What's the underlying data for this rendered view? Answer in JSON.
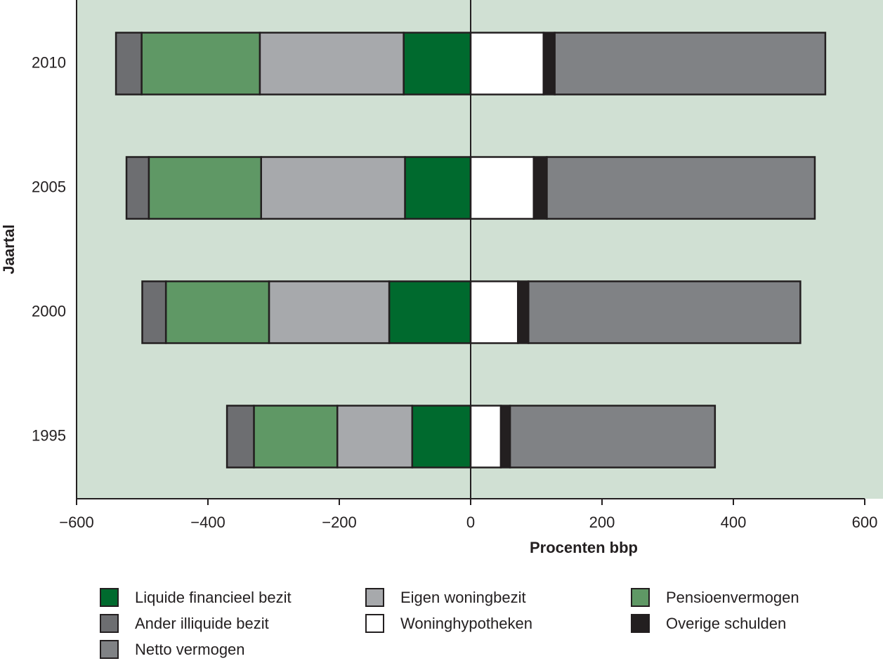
{
  "chart_data": {
    "type": "bar",
    "orientation": "horizontal",
    "stacked": true,
    "categories": [
      "1995",
      "2000",
      "2005",
      "2010"
    ],
    "series": [
      {
        "name": "Liquide financieel bezit",
        "color": "#006a2e",
        "values": [
          -89,
          -124,
          -100,
          -102
        ]
      },
      {
        "name": "Eigen woningbezit",
        "color": "#a7a9ac",
        "values": [
          -114,
          -183,
          -219,
          -219
        ]
      },
      {
        "name": "Pensioenvermogen",
        "color": "#5f9865",
        "values": [
          -127,
          -157,
          -171,
          -180
        ]
      },
      {
        "name": "Ander illiquide bezit",
        "color": "#6d6e71",
        "values": [
          -41,
          -36,
          -34,
          -39
        ]
      },
      {
        "name": "Woninghypotheken",
        "color": "#ffffff",
        "values": [
          46,
          72,
          96,
          111
        ]
      },
      {
        "name": "Overige schulden",
        "color": "#231f20",
        "values": [
          14,
          16,
          20,
          17
        ]
      },
      {
        "name": "Netto vermogen",
        "color": "#808285",
        "values": [
          312,
          414,
          408,
          412
        ]
      }
    ],
    "xlim": [
      -600,
      600
    ],
    "xticks": [
      {
        "value": -600,
        "label": "−600"
      },
      {
        "value": -400,
        "label": "−400"
      },
      {
        "value": -200,
        "label": "−200"
      },
      0,
      200,
      400,
      600
    ],
    "x_label": "Procenten bbp",
    "y_label": "Jaartal",
    "background": "#d0e0d3"
  }
}
